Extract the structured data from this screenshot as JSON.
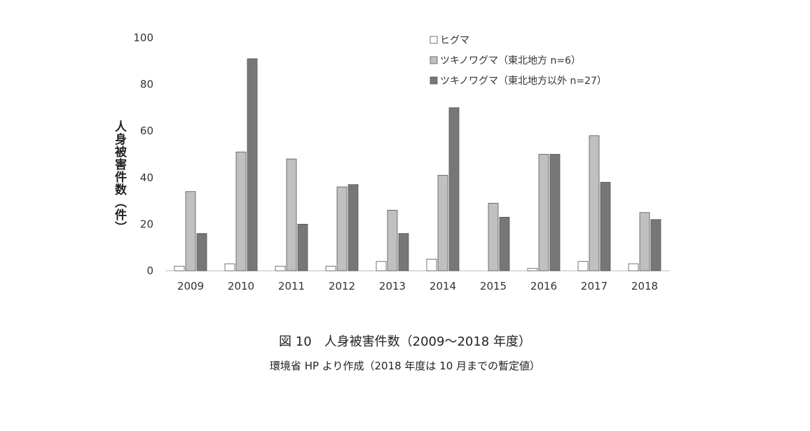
{
  "chart_data": {
    "type": "bar",
    "categories": [
      "2009",
      "2010",
      "2011",
      "2012",
      "2013",
      "2014",
      "2015",
      "2016",
      "2017",
      "2018"
    ],
    "series": [
      {
        "name": "ヒグマ",
        "color": "#ffffff",
        "values": [
          2,
          3,
          2,
          2,
          4,
          5,
          0,
          1,
          4,
          3
        ]
      },
      {
        "name": "ツキノワグマ（東北地方 n=6）",
        "color": "#c0c0c0",
        "values": [
          34,
          51,
          48,
          36,
          26,
          41,
          29,
          50,
          58,
          25
        ]
      },
      {
        "name": "ツキノワグマ（東北地方以外 n=27）",
        "color": "#777777",
        "values": [
          16,
          91,
          20,
          37,
          16,
          70,
          23,
          50,
          38,
          22
        ]
      }
    ],
    "ylim": [
      0,
      100
    ],
    "yticks": [
      0,
      20,
      40,
      60,
      80,
      100
    ],
    "ylabel": "人身被害件数（件）",
    "legend": "top-right",
    "grid": false
  },
  "caption": {
    "title": "図 10　人身被害件数（2009～2018 年度）",
    "source": "環境省 HP より作成（2018 年度は 10 月までの暫定値）"
  }
}
